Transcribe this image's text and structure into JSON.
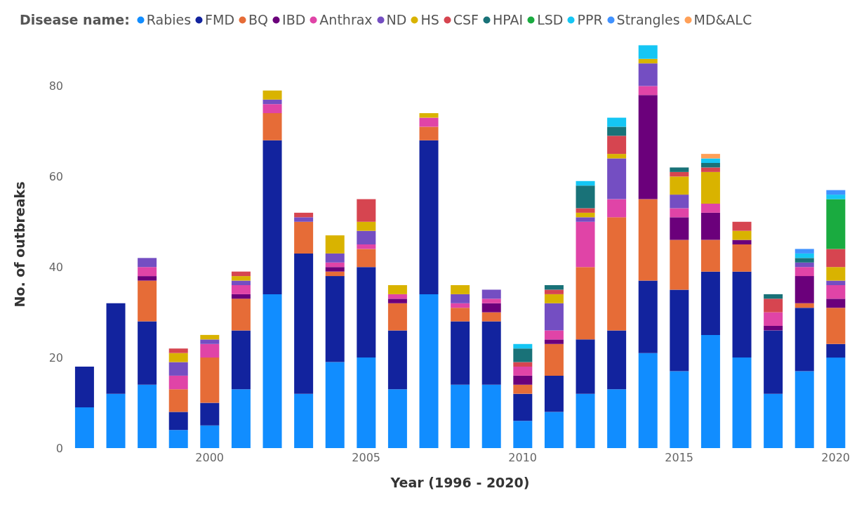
{
  "chart_data": {
    "type": "bar",
    "stacked": true,
    "legend_title": "Disease name:",
    "legend": "top",
    "xlabel": "Year (1996 - 2020)",
    "ylabel": "No. of outbreaks",
    "ylim": [
      0,
      90
    ],
    "yticks": [
      0,
      20,
      40,
      60,
      80
    ],
    "grid": false,
    "categories": [
      null,
      null,
      null,
      null,
      "2000",
      null,
      null,
      null,
      null,
      "2005",
      null,
      null,
      null,
      null,
      "2010",
      null,
      null,
      null,
      null,
      "2015",
      null,
      null,
      null,
      null,
      "2020"
    ],
    "series": [
      {
        "name": "Rabies",
        "color": "#118dff",
        "values": [
          9,
          12,
          14,
          4,
          5,
          13,
          34,
          12,
          19,
          20,
          13,
          34,
          14,
          14,
          6,
          8,
          12,
          13,
          21,
          17,
          25,
          20,
          12,
          17,
          20
        ]
      },
      {
        "name": "FMD",
        "color": "#12239e",
        "values": [
          9,
          20,
          14,
          4,
          5,
          13,
          34,
          31,
          19,
          20,
          13,
          34,
          14,
          14,
          6,
          8,
          12,
          13,
          16,
          18,
          14,
          19,
          14,
          14,
          3
        ]
      },
      {
        "name": "BQ",
        "color": "#e66c37",
        "values": [
          0,
          0,
          9,
          5,
          10,
          7,
          6,
          7,
          1,
          4,
          6,
          3,
          3,
          2,
          2,
          7,
          16,
          25,
          18,
          11,
          7,
          6,
          0,
          1,
          8
        ]
      },
      {
        "name": "IBD",
        "color": "#6b007b",
        "values": [
          0,
          0,
          1,
          0,
          0,
          1,
          0,
          0,
          1,
          0,
          1,
          0,
          0,
          2,
          2,
          1,
          0,
          0,
          23,
          5,
          6,
          1,
          1,
          6,
          2
        ]
      },
      {
        "name": "Anthrax",
        "color": "#e044a7",
        "values": [
          0,
          0,
          2,
          3,
          3,
          2,
          2,
          0,
          1,
          1,
          1,
          2,
          1,
          1,
          2,
          2,
          10,
          4,
          2,
          2,
          2,
          0,
          3,
          2,
          3
        ]
      },
      {
        "name": "ND",
        "color": "#744ec2",
        "values": [
          0,
          0,
          2,
          3,
          1,
          1,
          1,
          1,
          2,
          3,
          0,
          0,
          2,
          2,
          0,
          6,
          1,
          9,
          5,
          3,
          0,
          0,
          0,
          1,
          1
        ]
      },
      {
        "name": "HS",
        "color": "#d9b300",
        "values": [
          0,
          0,
          0,
          2,
          1,
          1,
          2,
          0,
          4,
          2,
          2,
          1,
          2,
          0,
          0,
          2,
          1,
          1,
          1,
          4,
          7,
          2,
          0,
          0,
          3
        ]
      },
      {
        "name": "CSF",
        "color": "#d64550",
        "values": [
          0,
          0,
          0,
          1,
          0,
          1,
          0,
          1,
          0,
          5,
          0,
          0,
          0,
          0,
          1,
          1,
          1,
          4,
          0,
          1,
          1,
          2,
          3,
          0,
          4
        ]
      },
      {
        "name": "HPAI",
        "color": "#197278",
        "values": [
          0,
          0,
          0,
          0,
          0,
          0,
          0,
          0,
          0,
          0,
          0,
          0,
          0,
          0,
          3,
          1,
          5,
          2,
          0,
          1,
          1,
          0,
          1,
          1,
          0
        ]
      },
      {
        "name": "LSD",
        "color": "#1aab40",
        "values": [
          0,
          0,
          0,
          0,
          0,
          0,
          0,
          0,
          0,
          0,
          0,
          0,
          0,
          0,
          0,
          0,
          0,
          0,
          0,
          0,
          0,
          0,
          0,
          0,
          11
        ]
      },
      {
        "name": "PPR",
        "color": "#15c6f4",
        "values": [
          0,
          0,
          0,
          0,
          0,
          0,
          0,
          0,
          0,
          0,
          0,
          0,
          0,
          0,
          1,
          0,
          1,
          2,
          3,
          0,
          1,
          0,
          0,
          1,
          1
        ]
      },
      {
        "name": "Strangles",
        "color": "#4092ff",
        "values": [
          0,
          0,
          0,
          0,
          0,
          0,
          0,
          0,
          0,
          0,
          0,
          0,
          0,
          0,
          0,
          0,
          0,
          0,
          0,
          0,
          0,
          0,
          0,
          1,
          1
        ]
      },
      {
        "name": "MD&ALC",
        "color": "#ffa058",
        "values": [
          0,
          0,
          0,
          0,
          0,
          0,
          0,
          0,
          0,
          0,
          0,
          0,
          0,
          0,
          0,
          0,
          0,
          0,
          0,
          0,
          1,
          0,
          0,
          0,
          0
        ]
      }
    ]
  }
}
